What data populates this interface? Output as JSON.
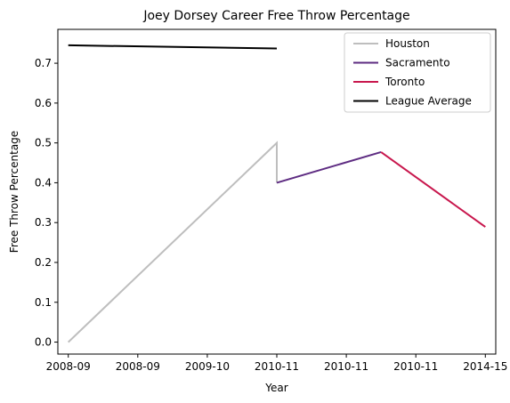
{
  "chart_data": {
    "type": "line",
    "title": "Joey Dorsey Career Free Throw Percentage",
    "xlabel": "Year",
    "ylabel": "Free Throw Percentage",
    "x_tick_labels": [
      "2008-09",
      "2008-09",
      "2009-10",
      "2010-11",
      "2010-11",
      "2010-11",
      "2014-15"
    ],
    "y_ticks": [
      0.0,
      0.1,
      0.2,
      0.3,
      0.4,
      0.5,
      0.6,
      0.7
    ],
    "y_tick_labels": [
      "0.0",
      "0.1",
      "0.2",
      "0.3",
      "0.4",
      "0.5",
      "0.6",
      "0.7"
    ],
    "ylim": [
      -0.03,
      0.785
    ],
    "xlim": [
      -0.1,
      4.1
    ],
    "grid": false,
    "legend_position": "top-right",
    "series": [
      {
        "name": "Houston",
        "color": "#bebebe",
        "points": [
          [
            0,
            0.0
          ],
          [
            2,
            0.5
          ],
          [
            2,
            0.4
          ]
        ]
      },
      {
        "name": "Sacramento",
        "color": "#5e2c82",
        "points": [
          [
            2,
            0.4
          ],
          [
            3,
            0.477
          ]
        ]
      },
      {
        "name": "Toronto",
        "color": "#c8174d",
        "points": [
          [
            3,
            0.477
          ],
          [
            4,
            0.289
          ]
        ]
      },
      {
        "name": "League Average",
        "color": "#000000",
        "points": [
          [
            0,
            0.745
          ],
          [
            2,
            0.737
          ]
        ]
      }
    ]
  }
}
